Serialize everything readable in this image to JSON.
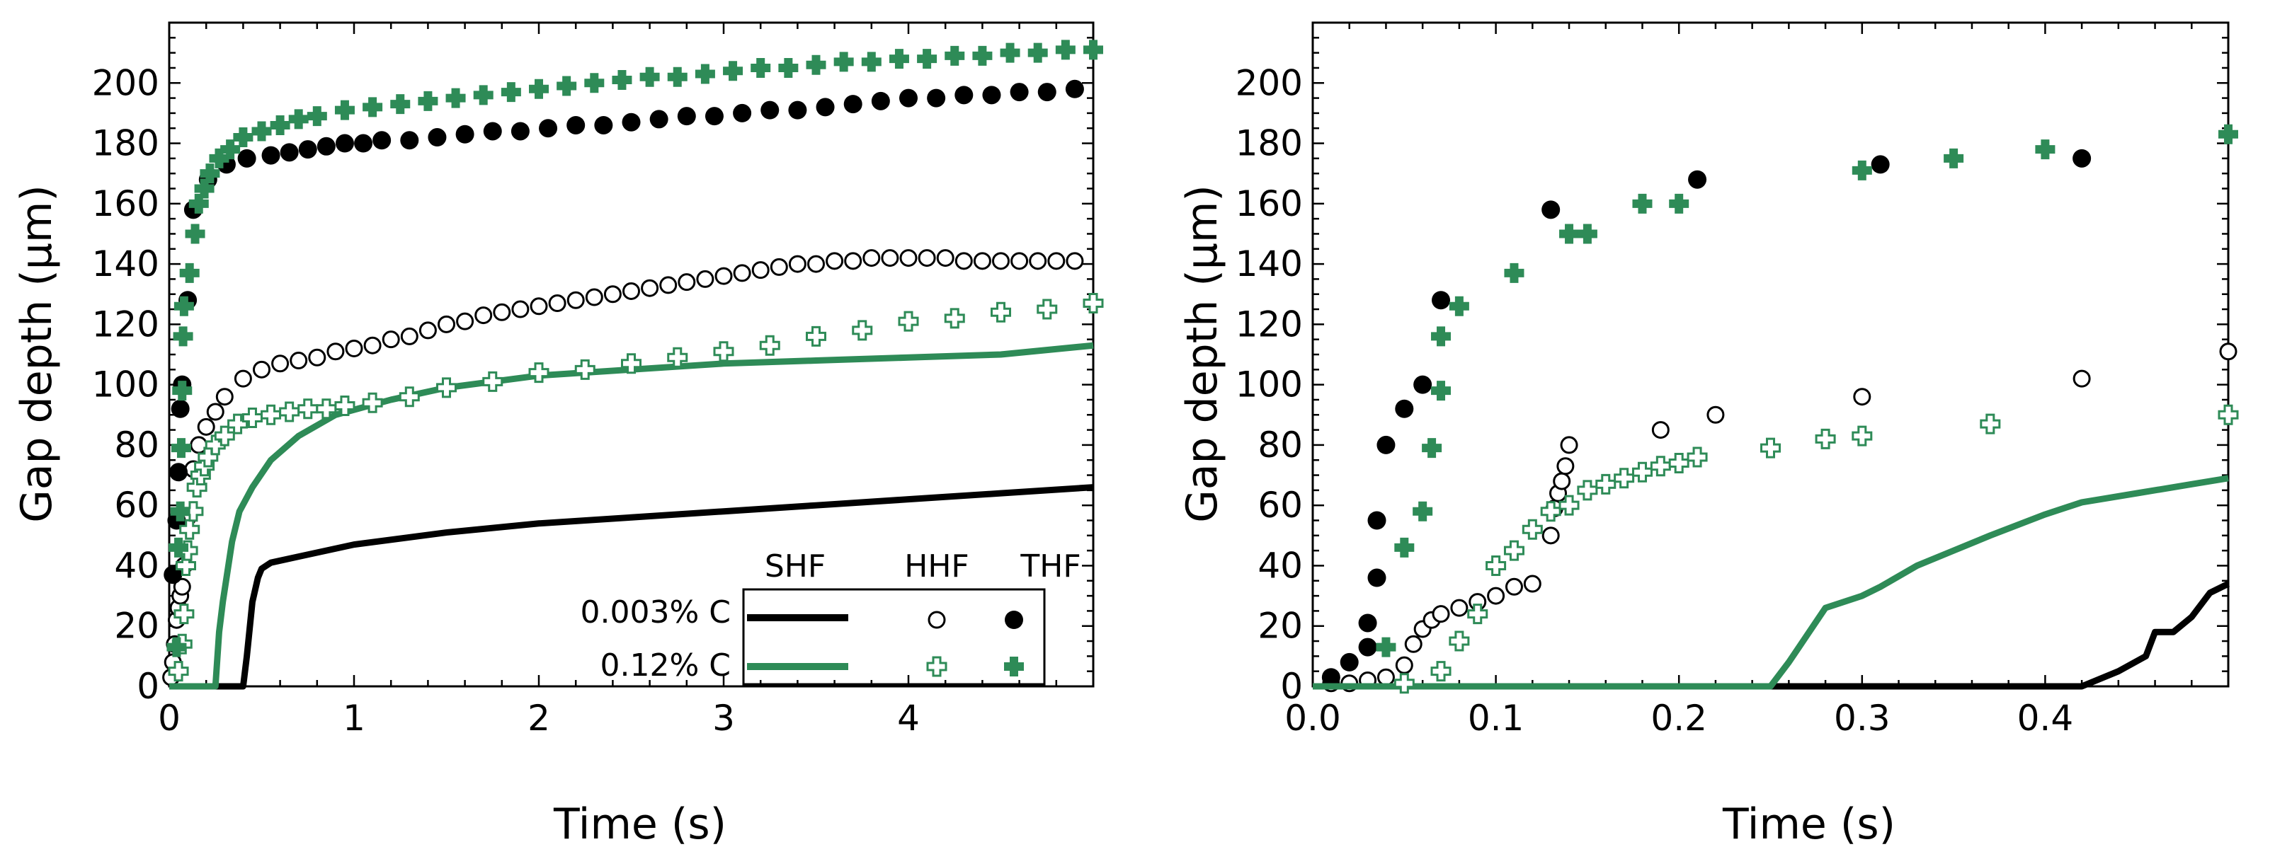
{
  "colors": {
    "black": "#000000",
    "green": "#2e8b57"
  },
  "chart_data": [
    {
      "type": "scatter",
      "title": "",
      "xlabel": "Time (s)",
      "ylabel": "Gap depth (µm)",
      "xlim": [
        0,
        5
      ],
      "ylim": [
        0,
        220
      ],
      "xticks": [
        "0",
        "1",
        "2",
        "3",
        "4"
      ],
      "yticks": [
        "0",
        "20",
        "40",
        "60",
        "80",
        "100",
        "120",
        "140",
        "160",
        "180",
        "200"
      ],
      "legend": {
        "position": "bottom-right",
        "columns": [
          "SHF",
          "HHF",
          "THF"
        ],
        "rows": [
          "0.003% C",
          "0.12% C"
        ]
      },
      "series": [
        {
          "name": "0.003% C SHF",
          "style": "line",
          "color": "#000000",
          "x": [
            0,
            0.4,
            0.42,
            0.45,
            0.48,
            0.5,
            0.55,
            0.7,
            1.0,
            1.5,
            2.0,
            2.5,
            3.0,
            3.5,
            4.0,
            4.5,
            5.0
          ],
          "y": [
            0,
            0,
            10,
            28,
            36,
            39,
            41,
            43,
            47,
            51,
            54,
            56,
            58,
            60,
            62,
            64,
            66
          ]
        },
        {
          "name": "0.003% C HHF",
          "style": "open-circle",
          "color": "#000000",
          "x": [
            0.01,
            0.02,
            0.03,
            0.04,
            0.05,
            0.06,
            0.07,
            0.08,
            0.1,
            0.13,
            0.16,
            0.2,
            0.25,
            0.3,
            0.4,
            0.5,
            0.6,
            0.7,
            0.8,
            0.9,
            1.0,
            1.1,
            1.2,
            1.3,
            1.4,
            1.5,
            1.6,
            1.7,
            1.8,
            1.9,
            2.0,
            2.1,
            2.2,
            2.3,
            2.4,
            2.5,
            2.6,
            2.7,
            2.8,
            2.9,
            3.0,
            3.1,
            3.2,
            3.3,
            3.4,
            3.5,
            3.6,
            3.7,
            3.8,
            3.9,
            4.0,
            4.1,
            4.2,
            4.3,
            4.4,
            4.5,
            4.6,
            4.7,
            4.8,
            4.9
          ],
          "y": [
            3,
            8,
            14,
            22,
            26,
            30,
            33,
            40,
            56,
            72,
            80,
            86,
            91,
            96,
            102,
            105,
            107,
            108,
            109,
            111,
            112,
            113,
            115,
            116,
            118,
            120,
            121,
            123,
            124,
            125,
            126,
            127,
            128,
            129,
            130,
            131,
            132,
            133,
            134,
            135,
            136,
            137,
            138,
            139,
            140,
            140,
            141,
            141,
            142,
            142,
            142,
            142,
            142,
            141,
            141,
            141,
            141,
            141,
            141,
            141
          ]
        },
        {
          "name": "0.003% C THF",
          "style": "filled-circle",
          "color": "#000000",
          "x": [
            0.02,
            0.04,
            0.05,
            0.06,
            0.07,
            0.1,
            0.13,
            0.21,
            0.31,
            0.42,
            0.55,
            0.65,
            0.75,
            0.85,
            0.95,
            1.05,
            1.15,
            1.3,
            1.45,
            1.6,
            1.75,
            1.9,
            2.05,
            2.2,
            2.35,
            2.5,
            2.65,
            2.8,
            2.95,
            3.1,
            3.25,
            3.4,
            3.55,
            3.7,
            3.85,
            4.0,
            4.15,
            4.3,
            4.45,
            4.6,
            4.75,
            4.9
          ],
          "y": [
            37,
            55,
            71,
            92,
            100,
            128,
            158,
            168,
            173,
            175,
            176,
            177,
            178,
            179,
            180,
            180,
            181,
            181,
            182,
            183,
            184,
            184,
            185,
            186,
            186,
            187,
            188,
            189,
            189,
            190,
            191,
            191,
            192,
            193,
            194,
            195,
            195,
            196,
            196,
            197,
            197,
            198
          ]
        },
        {
          "name": "0.12% C SHF",
          "style": "line",
          "color": "#2e8b57",
          "x": [
            0,
            0.25,
            0.27,
            0.29,
            0.31,
            0.34,
            0.38,
            0.45,
            0.55,
            0.7,
            0.9,
            1.2,
            1.5,
            2.0,
            2.5,
            3.0,
            3.5,
            4.0,
            4.5,
            5.0
          ],
          "y": [
            0,
            0,
            18,
            28,
            36,
            48,
            58,
            66,
            75,
            83,
            90,
            95,
            99,
            103,
            105,
            107,
            108,
            109,
            110,
            113
          ]
        },
        {
          "name": "0.12% C HHF",
          "style": "open-cross",
          "color": "#2e8b57",
          "x": [
            0.05,
            0.07,
            0.08,
            0.09,
            0.1,
            0.11,
            0.13,
            0.15,
            0.17,
            0.19,
            0.21,
            0.25,
            0.3,
            0.37,
            0.45,
            0.55,
            0.65,
            0.75,
            0.85,
            0.95,
            1.1,
            1.3,
            1.5,
            1.75,
            2.0,
            2.25,
            2.5,
            2.75,
            3.0,
            3.25,
            3.5,
            3.75,
            4.0,
            4.25,
            4.5,
            4.75,
            5.0
          ],
          "y": [
            5,
            14,
            24,
            40,
            45,
            52,
            58,
            66,
            70,
            73,
            76,
            80,
            83,
            87,
            89,
            90,
            91,
            92,
            92,
            93,
            94,
            96,
            99,
            101,
            104,
            105,
            107,
            109,
            111,
            113,
            116,
            118,
            121,
            122,
            124,
            125,
            127
          ]
        },
        {
          "name": "0.12% C THF",
          "style": "filled-cross",
          "color": "#2e8b57",
          "x": [
            0.04,
            0.05,
            0.06,
            0.065,
            0.07,
            0.075,
            0.08,
            0.11,
            0.14,
            0.16,
            0.19,
            0.22,
            0.27,
            0.33,
            0.4,
            0.5,
            0.6,
            0.7,
            0.8,
            0.95,
            1.1,
            1.25,
            1.4,
            1.55,
            1.7,
            1.85,
            2.0,
            2.15,
            2.3,
            2.45,
            2.6,
            2.75,
            2.9,
            3.05,
            3.2,
            3.35,
            3.5,
            3.65,
            3.8,
            3.95,
            4.1,
            4.25,
            4.4,
            4.55,
            4.7,
            4.85,
            5.0
          ],
          "y": [
            13,
            46,
            58,
            79,
            98,
            116,
            126,
            137,
            150,
            160,
            165,
            170,
            175,
            178,
            182,
            184,
            186,
            188,
            189,
            191,
            192,
            193,
            194,
            195,
            196,
            197,
            198,
            199,
            200,
            201,
            202,
            202,
            203,
            204,
            205,
            205,
            206,
            207,
            207,
            208,
            208,
            209,
            209,
            210,
            210,
            211,
            211
          ]
        }
      ]
    },
    {
      "type": "scatter",
      "title": "",
      "xlabel": "Time (s)",
      "ylabel": "Gap depth (µm)",
      "xlim": [
        0,
        0.5
      ],
      "ylim": [
        0,
        220
      ],
      "xticks": [
        "0.0",
        "0.1",
        "0.2",
        "0.3",
        "0.4"
      ],
      "yticks": [
        "0",
        "20",
        "40",
        "60",
        "80",
        "100",
        "120",
        "140",
        "160",
        "180",
        "200"
      ],
      "series": [
        {
          "name": "0.003% C SHF",
          "style": "line",
          "color": "#000000",
          "x": [
            0,
            0.42,
            0.44,
            0.455,
            0.46,
            0.47,
            0.48,
            0.49,
            0.5
          ],
          "y": [
            0,
            0,
            5,
            10,
            18,
            18,
            23,
            31,
            34
          ]
        },
        {
          "name": "0.003% C HHF",
          "style": "open-circle",
          "color": "#000000",
          "x": [
            0.01,
            0.02,
            0.03,
            0.04,
            0.05,
            0.055,
            0.06,
            0.065,
            0.07,
            0.08,
            0.09,
            0.1,
            0.11,
            0.12,
            0.13,
            0.132,
            0.134,
            0.136,
            0.138,
            0.14,
            0.19,
            0.22,
            0.3,
            0.42,
            0.5
          ],
          "y": [
            1,
            1,
            2,
            3,
            7,
            14,
            19,
            22,
            24,
            26,
            28,
            30,
            33,
            34,
            50,
            59,
            64,
            68,
            73,
            80,
            85,
            90,
            96,
            102,
            111
          ]
        },
        {
          "name": "0.003% C THF",
          "style": "filled-circle",
          "color": "#000000",
          "x": [
            0.01,
            0.02,
            0.03,
            0.03,
            0.035,
            0.035,
            0.04,
            0.05,
            0.06,
            0.07,
            0.13,
            0.21,
            0.31,
            0.42
          ],
          "y": [
            3,
            8,
            13,
            21,
            36,
            55,
            80,
            92,
            100,
            128,
            158,
            168,
            173,
            175
          ]
        },
        {
          "name": "0.12% C SHF",
          "style": "line",
          "color": "#2e8b57",
          "x": [
            0,
            0.25,
            0.26,
            0.27,
            0.28,
            0.29,
            0.3,
            0.31,
            0.33,
            0.35,
            0.37,
            0.4,
            0.42,
            0.43,
            0.45,
            0.48,
            0.5
          ],
          "y": [
            0,
            0,
            8,
            17,
            26,
            28,
            30,
            33,
            40,
            45,
            50,
            57,
            61,
            62,
            64,
            67,
            69
          ]
        },
        {
          "name": "0.12% C HHF",
          "style": "open-cross",
          "color": "#2e8b57",
          "x": [
            0.05,
            0.07,
            0.08,
            0.09,
            0.1,
            0.11,
            0.12,
            0.13,
            0.14,
            0.15,
            0.16,
            0.17,
            0.18,
            0.19,
            0.2,
            0.21,
            0.25,
            0.28,
            0.3,
            0.37,
            0.5
          ],
          "y": [
            1,
            5,
            15,
            24,
            40,
            45,
            52,
            58,
            60,
            65,
            67,
            69,
            71,
            73,
            74,
            76,
            79,
            82,
            83,
            87,
            90
          ]
        },
        {
          "name": "0.12% C THF",
          "style": "filled-cross",
          "color": "#2e8b57",
          "x": [
            0.04,
            0.05,
            0.06,
            0.065,
            0.07,
            0.07,
            0.08,
            0.11,
            0.14,
            0.15,
            0.18,
            0.2,
            0.3,
            0.35,
            0.4,
            0.5
          ],
          "y": [
            13,
            46,
            58,
            79,
            98,
            116,
            126,
            137,
            150,
            150,
            160,
            160,
            171,
            175,
            178,
            183
          ]
        }
      ]
    }
  ]
}
